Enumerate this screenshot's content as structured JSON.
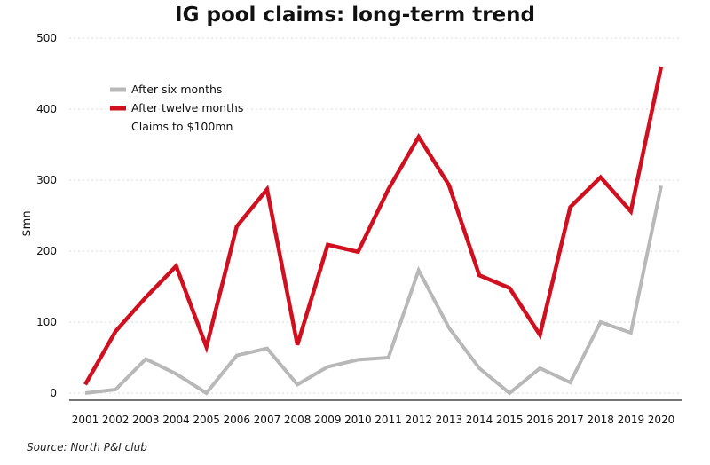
{
  "title": "IG pool claims: long-term trend",
  "source": "Source: North P&I club",
  "colors": {
    "six_months": "#b8b8b8",
    "twelve_months": "#d0101f"
  },
  "chart_data": {
    "type": "line",
    "title": "IG pool claims: long-term trend",
    "xlabel": "",
    "ylabel": "$mn",
    "ylim": [
      0,
      500
    ],
    "yticks": [
      0,
      100,
      200,
      300,
      400,
      500
    ],
    "grid": true,
    "legend": "top-left",
    "legend_note": "Claims to $100mn",
    "x": [
      "2001",
      "2002",
      "2003",
      "2004",
      "2005",
      "2006",
      "2007",
      "2008",
      "2009",
      "2010",
      "2011",
      "2012",
      "2013",
      "2014",
      "2015",
      "2016",
      "2017",
      "2018",
      "2019",
      "2020"
    ],
    "series": [
      {
        "name": "After six months",
        "color": "#b8b8b8",
        "values": [
          0,
          5,
          48,
          27,
          0,
          53,
          63,
          12,
          37,
          47,
          50,
          173,
          92,
          35,
          0,
          35,
          15,
          100,
          85,
          292
        ]
      },
      {
        "name": "After twelve months",
        "color": "#d0101f",
        "values": [
          12,
          87,
          135,
          179,
          65,
          235,
          287,
          68,
          209,
          199,
          287,
          361,
          293,
          166,
          148,
          82,
          262,
          304,
          256,
          460
        ]
      }
    ]
  }
}
